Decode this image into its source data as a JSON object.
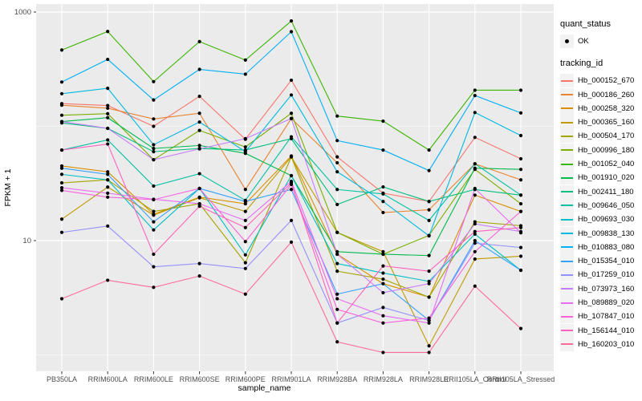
{
  "figure": {
    "colors": {
      "panel_bg": "#EBEBEB",
      "grid": "#FFFFFF",
      "tick_text": "#4D4D4D",
      "axis_title_text": "#000000",
      "point": "#000000",
      "legend_key_bg": "#F2F2F2",
      "tick_mark": "#333333"
    },
    "legend": {
      "quant_status": {
        "title": "quant_status",
        "items": [
          {
            "label": "OK",
            "symbol": "point"
          }
        ]
      },
      "tracking_id": {
        "title": "tracking_id"
      }
    }
  },
  "chart_data": {
    "type": "line",
    "title": "",
    "xlabel": "sample_name",
    "ylabel": "FPKM + 1",
    "y_scale": "log10",
    "ylim": [
      1,
      1000
    ],
    "y_breaks": [
      1000,
      10
    ],
    "y_break_labels": [
      "1000",
      "10"
    ],
    "y_minor_breaks": [
      100,
      1
    ],
    "grid": "on",
    "legend_position": "right",
    "marker": "black point (quant_status = OK)",
    "categories": [
      "PB350LA",
      "RRIM600LA",
      "RRIM600LE",
      "RRIM600SE",
      "RRIM600PE",
      "RRIM901LA",
      "RRIM928BA",
      "RRIM928LA",
      "RRIM928LE",
      "RRII105LA_Control",
      "RRII105LA_Stressed"
    ],
    "series": [
      {
        "name": "Hb_000152_670",
        "color": "#F8766D",
        "values": [
          158,
          152,
          100,
          183,
          77,
          253,
          54,
          26,
          22,
          80,
          52
        ]
      },
      {
        "name": "Hb_000186_260",
        "color": "#EA8331",
        "values": [
          153,
          144,
          116,
          130,
          28,
          117,
          48,
          17.6,
          18.6,
          47,
          34
        ]
      },
      {
        "name": "Hb_000258_320",
        "color": "#D89000",
        "values": [
          45,
          40,
          17,
          24,
          21,
          55,
          7.6,
          4.2,
          3.2,
          25,
          18
        ]
      },
      {
        "name": "Hb_000365_160",
        "color": "#C09B00",
        "values": [
          15.4,
          29.4,
          16.7,
          23.7,
          18,
          54,
          11.8,
          8,
          1.2,
          6.9,
          7.3
        ]
      },
      {
        "name": "Hb_000504_170",
        "color": "#A3A500",
        "values": [
          32,
          34,
          18,
          21,
          6.4,
          54,
          5.4,
          4.6,
          3.2,
          14.6,
          13.5
        ]
      },
      {
        "name": "Hb_000996_180",
        "color": "#7CAE00",
        "values": [
          125,
          129,
          51,
          92,
          66,
          130,
          11.8,
          7.6,
          11.1,
          42,
          21
        ]
      },
      {
        "name": "Hb_001052_040",
        "color": "#39B600",
        "values": [
          465,
          676,
          246,
          551,
          380,
          835,
          123,
          111,
          62,
          207,
          207
        ]
      },
      {
        "name": "Hb_001910_020",
        "color": "#00BB4E",
        "values": [
          110,
          119,
          64,
          68,
          58,
          37,
          8,
          7.6,
          7.4,
          43,
          42
        ]
      },
      {
        "name": "Hb_002411_180",
        "color": "#00BF7D",
        "values": [
          107,
          96,
          60,
          64,
          62,
          78,
          20.7,
          29.5,
          22,
          28,
          25
        ]
      },
      {
        "name": "Hb_009646_050",
        "color": "#00C1A3",
        "values": [
          62,
          76,
          30,
          38.5,
          22.5,
          81,
          28,
          25.6,
          15,
          47,
          25
        ]
      },
      {
        "name": "Hb_009693_030",
        "color": "#00BFC4",
        "values": [
          38,
          34,
          12.4,
          28.6,
          7.5,
          37,
          6.3,
          5.2,
          4.4,
          11.4,
          5.5
        ]
      },
      {
        "name": "Hb_009838_130",
        "color": "#00BAE0",
        "values": [
          193,
          215,
          69,
          109,
          60,
          188,
          40,
          22,
          11,
          132,
          83
        ]
      },
      {
        "name": "Hb_010883_080",
        "color": "#00B0F6",
        "values": [
          244,
          385,
          170,
          315,
          286,
          673,
          75,
          62,
          41,
          186,
          131
        ]
      },
      {
        "name": "Hb_015354_010",
        "color": "#35A2FF",
        "values": [
          43,
          38,
          14.6,
          28.6,
          22,
          28,
          3.4,
          4.2,
          2.0,
          10,
          5.5
        ]
      },
      {
        "name": "Hb_017259_010",
        "color": "#9590FF",
        "values": [
          11.8,
          13.4,
          5.9,
          6.3,
          5.7,
          15,
          1.9,
          2.6,
          2.0,
          9.5,
          8.7
        ]
      },
      {
        "name": "Hb_073973_160",
        "color": "#C77CFF",
        "values": [
          110,
          96,
          51,
          63.5,
          78,
          117,
          7.6,
          3.5,
          4.2,
          14,
          12
        ]
      },
      {
        "name": "Hb_089889_020",
        "color": "#E76BF3",
        "values": [
          29,
          26,
          23,
          21,
          15,
          33,
          3.1,
          2.2,
          1.9,
          28.6,
          11.7
        ]
      },
      {
        "name": "Hb_107847_010",
        "color": "#FA62DB",
        "values": [
          27.5,
          24,
          22.8,
          28.6,
          9.8,
          31,
          2.5,
          1.9,
          2.1,
          8,
          18
        ]
      },
      {
        "name": "Hb_156144_010",
        "color": "#FF62BC",
        "values": [
          62,
          70,
          7.6,
          20,
          13,
          32,
          1.9,
          6.0,
          5.4,
          12,
          13
        ]
      },
      {
        "name": "Hb_160203_010",
        "color": "#FF6A98",
        "values": [
          3.1,
          4.5,
          3.9,
          4.9,
          3.4,
          9.7,
          1.3,
          1.05,
          1.05,
          4.0,
          1.7
        ]
      }
    ]
  }
}
